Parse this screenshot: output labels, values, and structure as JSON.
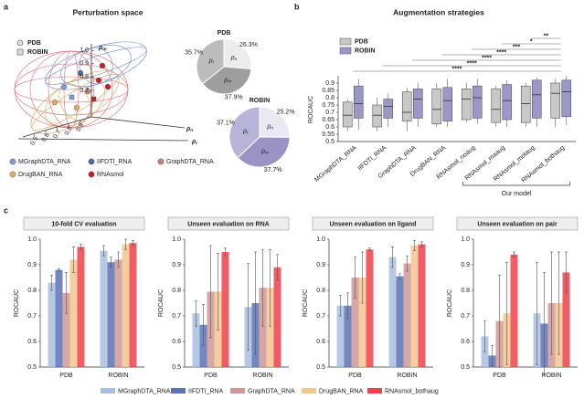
{
  "panel_labels": [
    "a",
    "b",
    "c"
  ],
  "chart_data": [
    {
      "type": "scatter3d",
      "title": "Perturbation space",
      "legend": [
        "PDB",
        "ROBIN"
      ],
      "axis_labels": [
        "ρm",
        "ρn",
        "ρr"
      ],
      "zlim": [
        0.5,
        1.05
      ],
      "zticks": [
        {
          "value": 1,
          "label": "1.0"
        },
        0.9,
        0.8,
        0.7
      ],
      "xlim": [
        0.4,
        1.0
      ],
      "xticks": [
        0.9,
        0.8,
        0.7,
        0.6,
        0.5
      ],
      "series": [
        {
          "name": "MGraphDTA_RNA",
          "color": "#7f9ccf"
        },
        {
          "name": "IIFDTI_RNA",
          "color": "#4a6aa8"
        },
        {
          "name": "GraphDTA_RNA",
          "color": "#c0807a"
        },
        {
          "name": "DrugBAN_RNA",
          "color": "#e0a860"
        },
        {
          "name": "RNAsmol",
          "color": "#c02030"
        }
      ]
    },
    {
      "type": "pie",
      "title": "PDB",
      "categories": [
        "ρn",
        "ρm",
        "ρr"
      ],
      "values": [
        26.3,
        37.9,
        35.7
      ],
      "value_labels": [
        "26.3%",
        "37.9%",
        "35.7%"
      ],
      "colors": [
        "#ececec",
        "#9e9e9e",
        "#bcbcbc"
      ]
    },
    {
      "type": "pie",
      "title": "ROBIN",
      "categories": [
        "ρn",
        "ρm",
        "ρr"
      ],
      "values": [
        25.2,
        37.7,
        37.1
      ],
      "value_labels": [
        "25.2%",
        "37.7%",
        "37.1%"
      ],
      "colors": [
        "#eae8f3",
        "#9b93c4",
        "#b8b3d8"
      ]
    },
    {
      "type": "box",
      "title": "Augmentation strategies",
      "ylabel": "ROCAUC",
      "categories": [
        "MGraphDTA_RNA",
        "IIFDTI_RNA",
        "GraphDTA_RNA",
        "DrugBAN_RNA",
        "RNAsmol_noaug",
        "RNAsmol_maaug",
        "RNAsmol_molaug",
        "RNAsmol_bothaug"
      ],
      "ylim": [
        0.5,
        0.95
      ],
      "yticks": [
        0.5,
        0.55,
        0.6,
        0.65,
        0.7,
        0.75,
        0.8,
        0.85,
        0.9
      ],
      "series": [
        {
          "name": "PDB",
          "color": "#c8c8c8",
          "min": [
            0.57,
            0.57,
            0.57,
            0.6,
            0.63,
            0.6,
            0.6,
            0.6
          ],
          "q1": [
            0.6,
            0.6,
            0.64,
            0.62,
            0.65,
            0.63,
            0.63,
            0.66
          ],
          "median": [
            0.68,
            0.68,
            0.7,
            0.72,
            0.79,
            0.72,
            0.76,
            0.83
          ],
          "q3": [
            0.77,
            0.75,
            0.84,
            0.86,
            0.86,
            0.86,
            0.88,
            0.9
          ],
          "max": [
            0.79,
            0.8,
            0.87,
            0.9,
            0.9,
            0.88,
            0.9,
            0.93
          ]
        },
        {
          "name": "ROBIN",
          "color": "#9b97c7",
          "min": [
            0.58,
            0.6,
            0.6,
            0.6,
            0.62,
            0.6,
            0.6,
            0.61
          ],
          "q1": [
            0.66,
            0.66,
            0.66,
            0.64,
            0.66,
            0.65,
            0.66,
            0.67
          ],
          "median": [
            0.76,
            0.74,
            0.79,
            0.78,
            0.8,
            0.78,
            0.82,
            0.84
          ],
          "q3": [
            0.88,
            0.79,
            0.86,
            0.87,
            0.88,
            0.89,
            0.92,
            0.92
          ],
          "max": [
            0.93,
            0.83,
            0.9,
            0.93,
            0.93,
            0.92,
            0.94,
            0.95
          ]
        }
      ],
      "significance": [
        "****",
        "****",
        "****",
        "****",
        "***",
        "*",
        "**"
      ],
      "bracket_label": "Our model"
    },
    {
      "type": "bar",
      "title": "10-fold CV evaluation",
      "ylabel": "ROCAUC",
      "categories": [
        "PDB",
        "ROBIN"
      ],
      "ylim": [
        0.5,
        1.0
      ],
      "yticks": [
        0.5,
        0.6,
        0.7,
        0.8,
        0.9,
        {
          "value": 1,
          "label": "1.0"
        }
      ],
      "series": [
        {
          "name": "MGraphDTA_RNA",
          "color": "#a8bfe0",
          "values": [
            0.83,
            0.955
          ],
          "errors": [
            0.03,
            0.02
          ]
        },
        {
          "name": "IIFDTI_RNA",
          "color": "#5b73b5",
          "values": [
            0.88,
            0.91
          ],
          "errors": [
            0.005,
            0.02
          ]
        },
        {
          "name": "GraphDTA_RNA",
          "color": "#cf9894",
          "values": [
            0.79,
            0.92
          ],
          "errors": [
            0.08,
            0.03
          ]
        },
        {
          "name": "DrugBAN_RNA",
          "color": "#f2c690",
          "values": [
            0.92,
            0.98
          ],
          "errors": [
            0.05,
            0.02
          ]
        },
        {
          "name": "RNAsmol_bothaug",
          "color": "#f0404a",
          "values": [
            0.97,
            0.985
          ],
          "errors": [
            0.01,
            0.01
          ]
        }
      ]
    },
    {
      "type": "bar",
      "title": "Unseen evaluation on RNA",
      "ylabel": "ROCAUC",
      "categories": [
        "PDB",
        "ROBIN"
      ],
      "ylim": [
        0.5,
        1.0
      ],
      "yticks": [
        0.5,
        0.6,
        0.7,
        0.8,
        0.9,
        {
          "value": 1,
          "label": "1.0"
        }
      ],
      "series": [
        {
          "name": "MGraphDTA_RNA",
          "color": "#a8bfe0",
          "values": [
            0.71,
            0.735
          ],
          "errors": [
            0.05,
            0.17
          ]
        },
        {
          "name": "IIFDTI_RNA",
          "color": "#5b73b5",
          "values": [
            0.665,
            0.75
          ],
          "errors": [
            0.08,
            0.2
          ]
        },
        {
          "name": "GraphDTA_RNA",
          "color": "#cf9894",
          "values": [
            0.795,
            0.81
          ],
          "errors": [
            0.18,
            0.15
          ]
        },
        {
          "name": "DrugBAN_RNA",
          "color": "#f2c690",
          "values": [
            0.795,
            0.81
          ],
          "errors": [
            0.15,
            0.15
          ]
        },
        {
          "name": "RNAsmol_bothaug",
          "color": "#f0404a",
          "values": [
            0.95,
            0.89
          ],
          "errors": [
            0.015,
            0.05
          ]
        }
      ]
    },
    {
      "type": "bar",
      "title": "Unseen evaluation on ligand",
      "ylabel": "ROCAUC",
      "categories": [
        "PDB",
        "ROBIN"
      ],
      "ylim": [
        0.5,
        1.0
      ],
      "yticks": [
        0.5,
        0.6,
        0.7,
        0.8,
        0.9,
        {
          "value": 1,
          "label": "1.0"
        }
      ],
      "series": [
        {
          "name": "MGraphDTA_RNA",
          "color": "#a8bfe0",
          "values": [
            0.74,
            0.93
          ],
          "errors": [
            0.04,
            0.04
          ]
        },
        {
          "name": "IIFDTI_RNA",
          "color": "#5b73b5",
          "values": [
            0.74,
            0.855
          ],
          "errors": [
            0.05,
            0.01
          ]
        },
        {
          "name": "GraphDTA_RNA",
          "color": "#cf9894",
          "values": [
            0.85,
            0.905
          ],
          "errors": [
            0.08,
            0.03
          ]
        },
        {
          "name": "DrugBAN_RNA",
          "color": "#f2c690",
          "values": [
            0.85,
            0.975
          ],
          "errors": [
            0.1,
            0.02
          ]
        },
        {
          "name": "RNAsmol_bothaug",
          "color": "#f0404a",
          "values": [
            0.96,
            0.98
          ],
          "errors": [
            0.005,
            0.01
          ]
        }
      ]
    },
    {
      "type": "bar",
      "title": "Unseen evaluation on pair",
      "ylabel": "ROCAUC",
      "categories": [
        "PDB",
        "ROBIN"
      ],
      "ylim": [
        0.5,
        1.0
      ],
      "yticks": [
        0.5,
        0.6,
        0.7,
        0.8,
        0.9,
        {
          "value": 1,
          "label": "1.0"
        }
      ],
      "series": [
        {
          "name": "MGraphDTA_RNA",
          "color": "#a8bfe0",
          "values": [
            0.62,
            0.71
          ],
          "errors": [
            0.06,
            0.2
          ]
        },
        {
          "name": "IIFDTI_RNA",
          "color": "#5b73b5",
          "values": [
            0.545,
            0.67
          ],
          "errors": [
            0.04,
            0.2
          ]
        },
        {
          "name": "GraphDTA_RNA",
          "color": "#cf9894",
          "values": [
            0.68,
            0.75
          ],
          "errors": [
            0.18,
            0.2
          ]
        },
        {
          "name": "DrugBAN_RNA",
          "color": "#f2c690",
          "values": [
            0.71,
            0.75
          ],
          "errors": [
            0.2,
            0.2
          ]
        },
        {
          "name": "RNAsmol_bothaug",
          "color": "#f0404a",
          "values": [
            0.94,
            0.87
          ],
          "errors": [
            0.01,
            0.08
          ]
        }
      ]
    }
  ]
}
